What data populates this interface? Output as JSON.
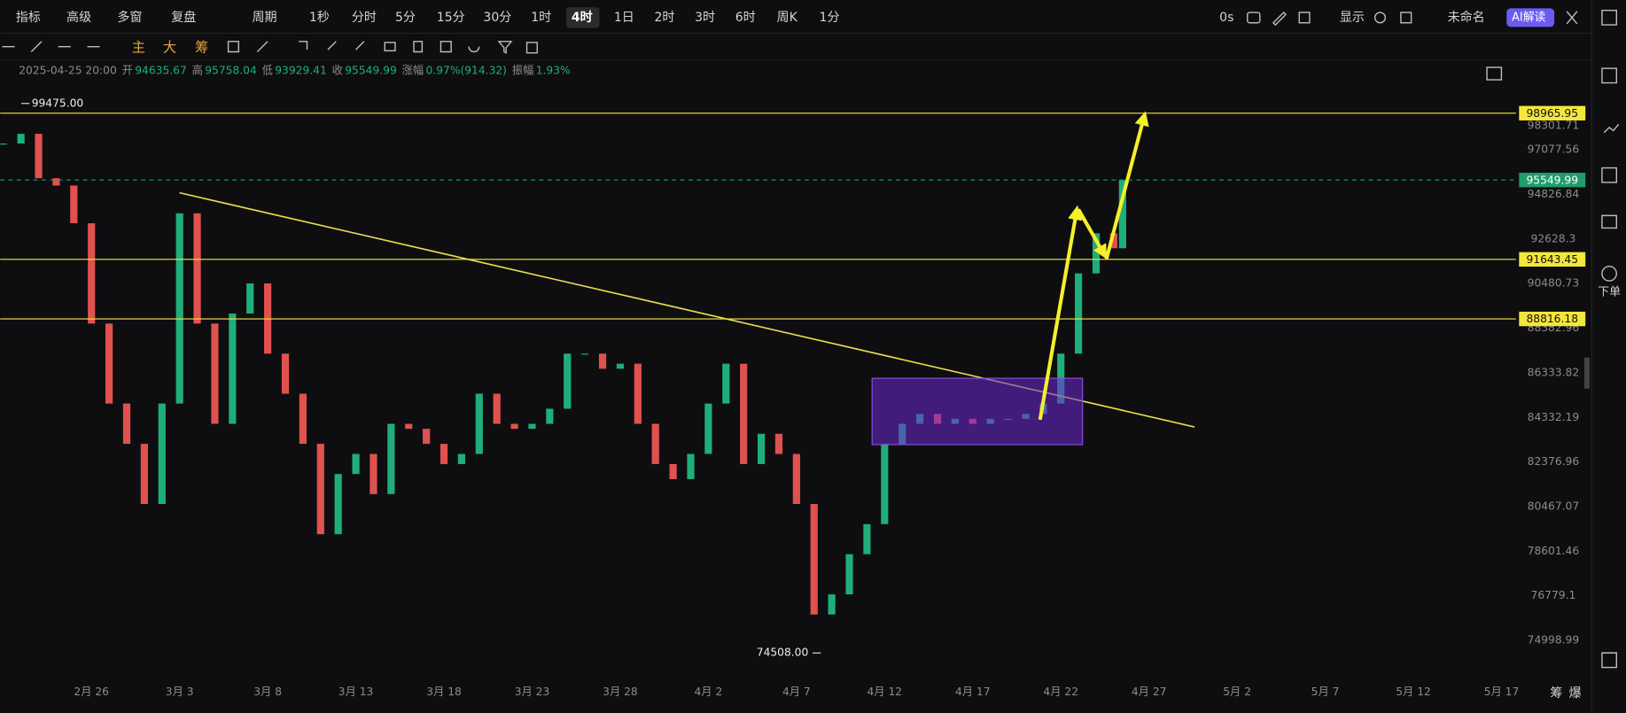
{
  "toolbar": {
    "left": [
      "指标",
      "高级",
      "多窗",
      "复盘"
    ],
    "period": "周期",
    "intervals": [
      "1秒",
      "分时",
      "5分",
      "15分",
      "30分",
      "1时",
      "4时",
      "1日",
      "2时",
      "3时",
      "6时",
      "周K",
      "1分"
    ],
    "active_interval": "4时",
    "right": [
      "0s",
      "显示",
      "未命名",
      "AI解读"
    ]
  },
  "drawing_tools": [
    "主",
    "大",
    "筹"
  ],
  "info": {
    "time": "2025-04-25 20:00",
    "fields": [
      {
        "label": "开",
        "value": 94635.67
      },
      {
        "label": "高",
        "value": 95758.04
      },
      {
        "label": "低",
        "value": 93929.41
      },
      {
        "label": "收",
        "value": 95549.99
      },
      {
        "label": "涨幅",
        "value": "0.97%(914.32)"
      },
      {
        "label": "振幅",
        "value": "1.93%"
      }
    ]
  },
  "sidebar": {
    "order": "下单"
  },
  "footer": [
    "筹",
    "爆"
  ],
  "chart_data": {
    "type": "candlestick",
    "log_scale": true,
    "x": [
      -5,
      -4,
      -3,
      -2,
      -1,
      0,
      1,
      2,
      3,
      4,
      5,
      6,
      7,
      8,
      9,
      10,
      11,
      12,
      13,
      14,
      15,
      16,
      17,
      18,
      19,
      20,
      21,
      22,
      23,
      24,
      25,
      26,
      27,
      28,
      29,
      30,
      31,
      32,
      33,
      34,
      35,
      36,
      37,
      38,
      39,
      40,
      41,
      42,
      43,
      44,
      45,
      46,
      47,
      48,
      49,
      50,
      51,
      52,
      53,
      54,
      55,
      56,
      57,
      58,
      58.5
    ],
    "series": [
      {
        "up_color": "#1fae7a",
        "down_color": "#e0524f",
        "values": [
          97400,
          97900,
          95640,
          95270,
          93400,
          88600,
          84950,
          83170,
          80580,
          84950,
          93890,
          88600,
          84050,
          89070,
          90490,
          87210,
          85390,
          83170,
          79310,
          81860,
          82730,
          81000,
          84050,
          83830,
          83170,
          82290,
          82730,
          85390,
          84050,
          83830,
          84050,
          84720,
          87210,
          87210,
          86520,
          86750,
          84050,
          82290,
          81640,
          82730,
          84950,
          86750,
          82290,
          83610,
          82730,
          80580,
          76030,
          76840,
          78480,
          79730,
          83170,
          84050,
          84490,
          84050,
          84270,
          84050,
          84270,
          84270,
          84490,
          84950,
          87210,
          90970,
          92910,
          92180,
          95549.99
        ]
      }
    ],
    "xlim": [
      -5.18,
      80.82
    ],
    "xticks": [
      {
        "value": 0,
        "label": "2月 26"
      },
      {
        "value": 5,
        "label": "3月 3"
      },
      {
        "value": 10,
        "label": "3月 8"
      },
      {
        "value": 15,
        "label": "3月 13"
      },
      {
        "value": 20,
        "label": "3月 18"
      },
      {
        "value": 25,
        "label": "3月 23"
      },
      {
        "value": 30,
        "label": "3月 28"
      },
      {
        "value": 35,
        "label": "4月 2"
      },
      {
        "value": 40,
        "label": "4月 7"
      },
      {
        "value": 45,
        "label": "4月 12"
      },
      {
        "value": 50,
        "label": "4月 17"
      },
      {
        "value": 55,
        "label": "4月 22"
      },
      {
        "value": 60,
        "label": "4月 27"
      },
      {
        "value": 65,
        "label": "5月 2"
      },
      {
        "value": 70,
        "label": "5月 7"
      },
      {
        "value": 75,
        "label": "5月 12"
      },
      {
        "value": 80,
        "label": "5月 17"
      }
    ],
    "ylim": [
      73502,
      100665
    ],
    "yticks": [
      98301.71,
      97077.56,
      94826.84,
      92628.3,
      90480.73,
      {
        "value": 88382.96,
        "label": "88382.96"
      },
      86333.82,
      84332.19,
      82376.96,
      80467.07,
      78601.46,
      76779.1,
      74998.99
    ],
    "price_lines": [
      {
        "value": 98965.95,
        "color": "#f5e63c"
      },
      {
        "value": 91643.45,
        "color": "#f5e63c"
      },
      {
        "value": 88816.18,
        "color": "#f5e63c"
      }
    ],
    "last_price": {
      "value": 95549.99,
      "color": "#1f9d6b"
    },
    "annotations": [
      {
        "value": 99475,
        "label": "99475.00",
        "x": -4.1
      },
      {
        "value": 74508,
        "label": "74508.00",
        "x": 41.5
      }
    ]
  }
}
